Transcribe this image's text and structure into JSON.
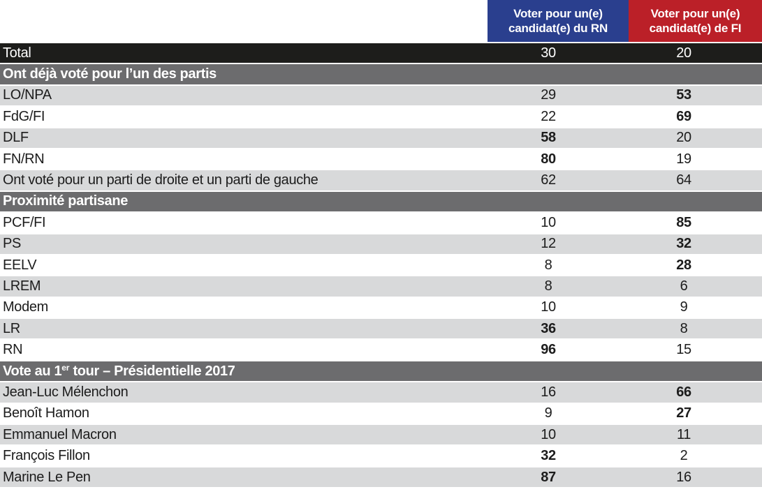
{
  "colors": {
    "rn_header_bg": "#2a3f8e",
    "fi_header_bg": "#bb2028",
    "total_row_bg": "#1d1d1b",
    "section_row_bg": "#6c6c6e",
    "stripe_gray": "#d8d9da",
    "stripe_white": "#ffffff",
    "header_text": "#ffffff",
    "row_text": "#1c1c1c"
  },
  "header": {
    "rn_label": "Voter pour un(e) candidat(e) du RN",
    "fi_label": "Voter pour un(e) candidat(e) de FI"
  },
  "chart_data": {
    "type": "table",
    "columns": [
      "",
      "Voter pour un(e) candidat(e) du RN",
      "Voter pour un(e) candidat(e) de FI"
    ],
    "rows": [
      {
        "type": "total",
        "label": "Total",
        "rn": "30",
        "fi": "20",
        "rn_bold": false,
        "fi_bold": false
      },
      {
        "type": "section",
        "label": "Ont déjà voté pour l’un des partis"
      },
      {
        "type": "data",
        "label": "LO/NPA",
        "rn": "29",
        "fi": "53",
        "rn_bold": false,
        "fi_bold": true
      },
      {
        "type": "data",
        "label": "FdG/FI",
        "rn": "22",
        "fi": "69",
        "rn_bold": false,
        "fi_bold": true
      },
      {
        "type": "data",
        "label": "DLF",
        "rn": "58",
        "fi": "20",
        "rn_bold": true,
        "fi_bold": false
      },
      {
        "type": "data",
        "label": "FN/RN",
        "rn": "80",
        "fi": "19",
        "rn_bold": true,
        "fi_bold": false
      },
      {
        "type": "data",
        "label": "Ont voté pour un parti de droite et un parti de gauche",
        "rn": "62",
        "fi": "64",
        "rn_bold": false,
        "fi_bold": false
      },
      {
        "type": "section",
        "label": "Proximité partisane"
      },
      {
        "type": "data",
        "label": "PCF/FI",
        "rn": "10",
        "fi": "85",
        "rn_bold": false,
        "fi_bold": true
      },
      {
        "type": "data",
        "label": "PS",
        "rn": "12",
        "fi": "32",
        "rn_bold": false,
        "fi_bold": true
      },
      {
        "type": "data",
        "label": "EELV",
        "rn": "8",
        "fi": "28",
        "rn_bold": false,
        "fi_bold": true
      },
      {
        "type": "data",
        "label": "LREM",
        "rn": "8",
        "fi": "6",
        "rn_bold": false,
        "fi_bold": false
      },
      {
        "type": "data",
        "label": "Modem",
        "rn": "10",
        "fi": "9",
        "rn_bold": false,
        "fi_bold": false
      },
      {
        "type": "data",
        "label": "LR",
        "rn": "36",
        "fi": "8",
        "rn_bold": true,
        "fi_bold": false
      },
      {
        "type": "data",
        "label": "RN",
        "rn": "96",
        "fi": "15",
        "rn_bold": true,
        "fi_bold": false
      },
      {
        "type": "section",
        "label": "Vote au 1",
        "label_sup": "er",
        "label_after": " tour – Présidentielle 2017"
      },
      {
        "type": "data",
        "label": "Jean-Luc Mélenchon",
        "rn": "16",
        "fi": "66",
        "rn_bold": false,
        "fi_bold": true
      },
      {
        "type": "data",
        "label": "Benoît Hamon",
        "rn": "9",
        "fi": "27",
        "rn_bold": false,
        "fi_bold": true
      },
      {
        "type": "data",
        "label": "Emmanuel Macron",
        "rn": "10",
        "fi": "11",
        "rn_bold": false,
        "fi_bold": false
      },
      {
        "type": "data",
        "label": "François Fillon",
        "rn": "32",
        "fi": "2",
        "rn_bold": true,
        "fi_bold": false
      },
      {
        "type": "data",
        "label": "Marine Le Pen",
        "rn": "87",
        "fi": "16",
        "rn_bold": true,
        "fi_bold": false
      }
    ]
  }
}
